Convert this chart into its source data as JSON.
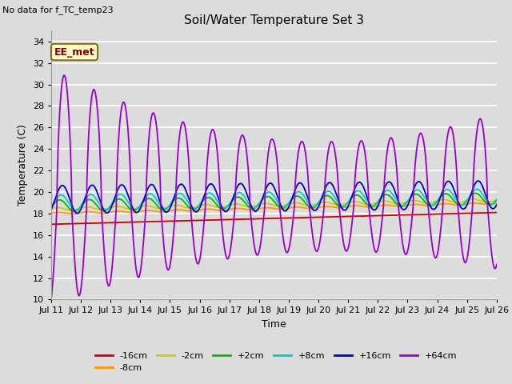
{
  "title": "Soil/Water Temperature Set 3",
  "subtitle": "No data for f_TC_temp23",
  "xlabel": "Time",
  "ylabel": "Temperature (C)",
  "ylim": [
    10,
    35
  ],
  "yticks": [
    10,
    12,
    14,
    16,
    18,
    20,
    22,
    24,
    26,
    28,
    30,
    32,
    34
  ],
  "background_color": "#dcdcdc",
  "plot_bg_color": "#dcdcdc",
  "grid_color": "#ffffff",
  "legend_label": "EE_met",
  "series": {
    "neg16cm": {
      "color": "#cc0000",
      "label": "-16cm"
    },
    "neg8cm": {
      "color": "#ff9900",
      "label": "-8cm"
    },
    "neg2cm": {
      "color": "#cccc00",
      "label": "-2cm"
    },
    "pos2cm": {
      "color": "#00bb00",
      "label": "+2cm"
    },
    "pos8cm": {
      "color": "#00cccc",
      "label": "+8cm"
    },
    "pos16cm": {
      "color": "#0000cc",
      "label": "+16cm"
    },
    "pos64cm": {
      "color": "#9900cc",
      "label": "+64cm"
    }
  },
  "x_start": 11.0,
  "x_end": 26.0,
  "xtick_positions": [
    11,
    12,
    13,
    14,
    15,
    16,
    17,
    18,
    19,
    20,
    21,
    22,
    23,
    24,
    25,
    26
  ],
  "xtick_labels": [
    "Jul 11",
    "Jul 12",
    "Jul 13",
    "Jul 14",
    "Jul 15",
    "Jul 16",
    "Jul 17",
    "Jul 18",
    "Jul 19",
    "Jul 20",
    "Jul 21",
    "Jul 22",
    "Jul 23",
    "Jul 24",
    "Jul 25",
    "Jul 26"
  ]
}
